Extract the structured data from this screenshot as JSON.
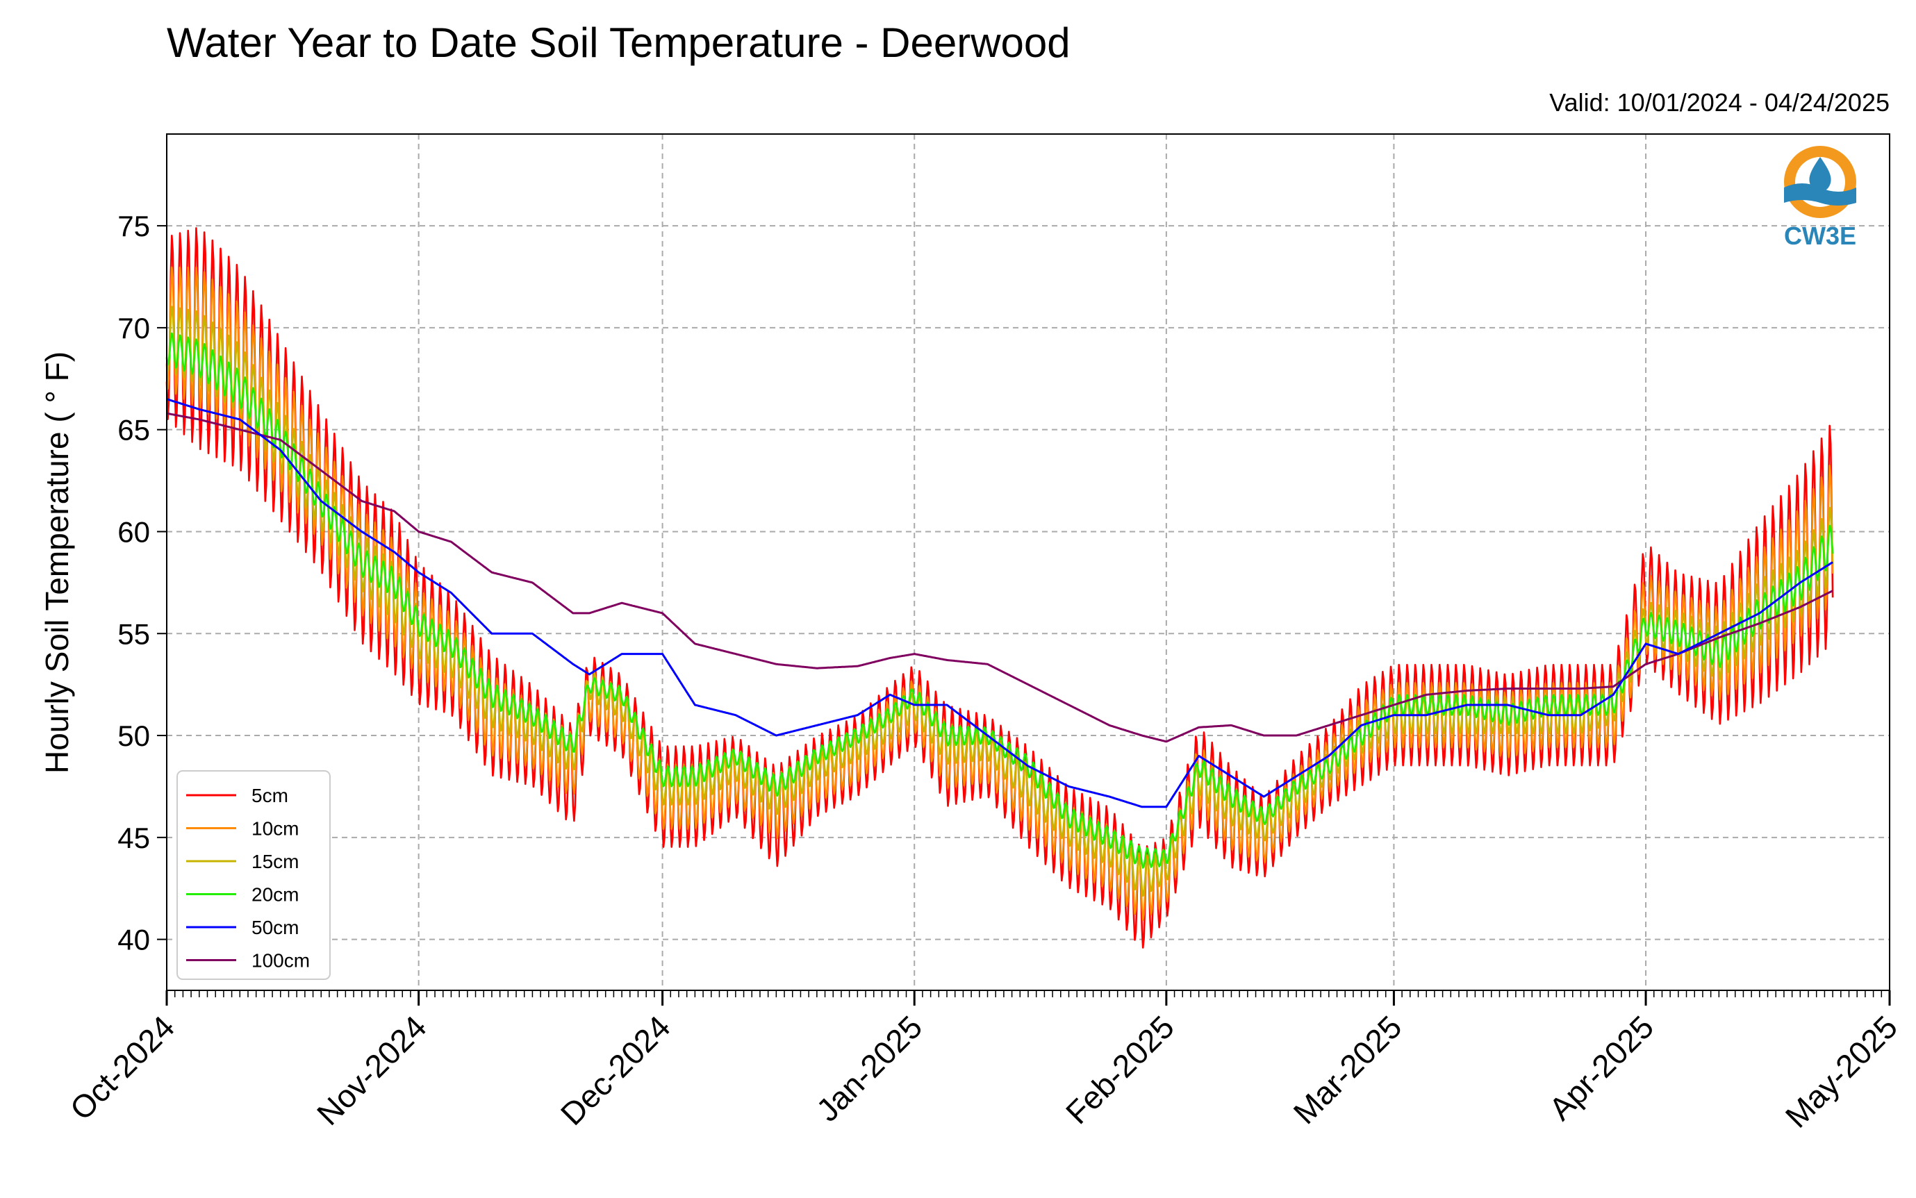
{
  "chart_data": {
    "type": "line",
    "title": "Water Year to Date Soil Temperature - Deerwood",
    "subtitle": "Valid: 10/01/2024 - 04/24/2025",
    "ylabel": "Hourly Soil Temperature ( ° F)",
    "xlabel": "",
    "ylim": [
      37.5,
      79.5
    ],
    "yticks": [
      40,
      45,
      50,
      55,
      60,
      65,
      70,
      75
    ],
    "xlim": [
      "2024-10-01",
      "2025-05-01"
    ],
    "xticks": [
      {
        "date": "2024-10-01",
        "label": "Oct-2024"
      },
      {
        "date": "2024-11-01",
        "label": "Nov-2024"
      },
      {
        "date": "2024-12-01",
        "label": "Dec-2024"
      },
      {
        "date": "2025-01-01",
        "label": "Jan-2025"
      },
      {
        "date": "2025-02-01",
        "label": "Feb-2025"
      },
      {
        "date": "2025-03-01",
        "label": "Mar-2025"
      },
      {
        "date": "2025-04-01",
        "label": "Apr-2025"
      },
      {
        "date": "2025-05-01",
        "label": "May-2025"
      }
    ],
    "grid": true,
    "legend_position": "bottom-left",
    "logo_text": "CW3E",
    "x": [
      "2024-10-01",
      "2024-10-05",
      "2024-10-10",
      "2024-10-15",
      "2024-10-20",
      "2024-10-25",
      "2024-10-29",
      "2024-11-01",
      "2024-11-05",
      "2024-11-10",
      "2024-11-15",
      "2024-11-20",
      "2024-11-22",
      "2024-11-26",
      "2024-12-01",
      "2024-12-05",
      "2024-12-10",
      "2024-12-15",
      "2024-12-20",
      "2024-12-25",
      "2024-12-29",
      "2025-01-01",
      "2025-01-05",
      "2025-01-10",
      "2025-01-15",
      "2025-01-20",
      "2025-01-25",
      "2025-01-29",
      "2025-02-01",
      "2025-02-05",
      "2025-02-09",
      "2025-02-13",
      "2025-02-17",
      "2025-02-21",
      "2025-02-25",
      "2025-03-01",
      "2025-03-05",
      "2025-03-10",
      "2025-03-15",
      "2025-03-20",
      "2025-03-24",
      "2025-03-28",
      "2025-04-01",
      "2025-04-05",
      "2025-04-10",
      "2025-04-15",
      "2025-04-20",
      "2025-04-24"
    ],
    "series": [
      {
        "name": "5cm",
        "color": "#ff0000",
        "values": [
          70.0,
          69.5,
          68.0,
          65.0,
          62.0,
          58.5,
          57.0,
          55.0,
          54.0,
          51.0,
          50.0,
          48.0,
          52.0,
          51.0,
          47.0,
          47.0,
          48.0,
          46.0,
          48.0,
          49.0,
          50.5,
          51.5,
          49.0,
          49.0,
          47.0,
          45.0,
          44.0,
          42.0,
          43.0,
          48.0,
          46.0,
          45.0,
          47.0,
          48.5,
          50.0,
          51.0,
          51.0,
          51.0,
          50.5,
          51.0,
          51.0,
          51.0,
          56.5,
          55.0,
          54.0,
          56.0,
          58.0,
          60.0
        ],
        "amp": [
          4.5,
          5.5,
          5.0,
          4.5,
          4.0,
          4.0,
          4.0,
          3.5,
          3.0,
          3.0,
          2.5,
          2.5,
          2.0,
          2.0,
          2.5,
          2.5,
          2.0,
          2.5,
          2.0,
          2.0,
          2.0,
          2.0,
          2.5,
          2.0,
          2.5,
          2.5,
          2.5,
          2.5,
          2.0,
          2.5,
          2.5,
          2.0,
          2.0,
          2.0,
          2.5,
          2.5,
          2.5,
          2.5,
          2.5,
          2.5,
          2.5,
          2.5,
          3.0,
          3.0,
          3.5,
          4.5,
          5.0,
          5.5
        ]
      },
      {
        "name": "10cm",
        "color": "#ff8c00",
        "values": [
          70.0,
          69.5,
          68.0,
          65.0,
          62.0,
          58.5,
          57.0,
          55.0,
          54.0,
          51.0,
          50.0,
          48.5,
          52.0,
          51.0,
          47.0,
          47.0,
          48.0,
          46.5,
          48.0,
          49.0,
          50.5,
          51.5,
          49.0,
          49.0,
          47.0,
          45.0,
          44.0,
          42.5,
          43.0,
          48.0,
          46.0,
          45.0,
          47.0,
          48.5,
          50.0,
          51.0,
          51.0,
          51.0,
          50.5,
          51.0,
          51.0,
          51.0,
          56.0,
          55.0,
          54.0,
          56.0,
          58.0,
          60.0
        ],
        "amp": [
          3.0,
          3.5,
          3.2,
          3.0,
          2.6,
          2.6,
          2.6,
          2.2,
          2.0,
          2.0,
          1.6,
          1.6,
          1.3,
          1.3,
          1.6,
          1.6,
          1.3,
          1.6,
          1.3,
          1.3,
          1.3,
          1.3,
          1.6,
          1.3,
          1.6,
          1.6,
          1.6,
          1.6,
          1.3,
          1.6,
          1.6,
          1.3,
          1.3,
          1.3,
          1.6,
          1.6,
          1.6,
          1.6,
          1.6,
          1.6,
          1.6,
          1.6,
          2.0,
          2.0,
          2.3,
          3.0,
          3.2,
          3.5
        ]
      },
      {
        "name": "15cm",
        "color": "#c8b400",
        "values": [
          69.5,
          69.0,
          67.5,
          64.5,
          61.5,
          58.5,
          57.0,
          55.0,
          54.0,
          51.5,
          50.5,
          49.0,
          52.5,
          51.5,
          47.5,
          47.5,
          48.5,
          47.0,
          48.5,
          49.5,
          50.5,
          51.5,
          49.5,
          49.5,
          47.5,
          45.5,
          44.5,
          43.0,
          43.5,
          48.0,
          46.5,
          45.5,
          47.0,
          48.5,
          50.0,
          51.0,
          51.0,
          51.0,
          51.0,
          51.0,
          51.0,
          51.5,
          55.5,
          55.0,
          54.0,
          56.0,
          57.5,
          59.5
        ],
        "amp": [
          1.6,
          1.8,
          1.7,
          1.6,
          1.4,
          1.4,
          1.4,
          1.2,
          1.1,
          1.1,
          0.9,
          0.9,
          0.7,
          0.7,
          0.9,
          0.9,
          0.7,
          0.9,
          0.7,
          0.7,
          0.7,
          0.7,
          0.9,
          0.7,
          0.9,
          0.9,
          0.9,
          0.9,
          0.7,
          0.9,
          0.9,
          0.7,
          0.7,
          0.7,
          0.9,
          0.9,
          0.9,
          0.9,
          0.9,
          0.9,
          0.9,
          0.9,
          1.1,
          1.1,
          1.3,
          1.6,
          1.7,
          1.9
        ]
      },
      {
        "name": "20cm",
        "color": "#22ee00",
        "values": [
          69.0,
          68.5,
          67.0,
          64.5,
          61.5,
          58.5,
          57.5,
          55.5,
          54.5,
          52.0,
          51.0,
          49.5,
          52.5,
          52.0,
          48.0,
          48.0,
          49.0,
          47.5,
          49.0,
          50.0,
          51.0,
          52.0,
          50.0,
          50.0,
          48.5,
          46.0,
          45.0,
          44.0,
          44.0,
          48.5,
          47.0,
          46.0,
          47.5,
          48.5,
          50.0,
          51.5,
          51.5,
          51.5,
          51.0,
          51.5,
          51.5,
          51.5,
          55.5,
          55.0,
          54.0,
          56.0,
          57.5,
          59.5
        ],
        "amp": [
          0.8,
          0.9,
          0.9,
          0.8,
          0.7,
          0.7,
          0.7,
          0.6,
          0.6,
          0.6,
          0.5,
          0.5,
          0.4,
          0.4,
          0.5,
          0.5,
          0.4,
          0.5,
          0.4,
          0.4,
          0.4,
          0.4,
          0.5,
          0.4,
          0.5,
          0.5,
          0.5,
          0.5,
          0.4,
          0.5,
          0.5,
          0.4,
          0.4,
          0.4,
          0.5,
          0.5,
          0.5,
          0.5,
          0.5,
          0.5,
          0.5,
          0.5,
          0.6,
          0.6,
          0.7,
          0.8,
          0.9,
          1.0
        ]
      },
      {
        "name": "50cm",
        "color": "#0000ff",
        "values": [
          66.5,
          66.0,
          65.5,
          64.0,
          61.5,
          60.0,
          59.0,
          58.0,
          57.0,
          55.0,
          55.0,
          53.5,
          53.0,
          54.0,
          54.0,
          51.5,
          51.0,
          50.0,
          50.5,
          51.0,
          52.0,
          51.5,
          51.5,
          50.0,
          48.5,
          47.5,
          47.0,
          46.5,
          46.5,
          49.0,
          48.0,
          47.0,
          48.0,
          49.0,
          50.5,
          51.0,
          51.0,
          51.5,
          51.5,
          51.0,
          51.0,
          52.0,
          54.5,
          54.0,
          55.0,
          56.0,
          57.5,
          58.5
        ],
        "amp": [
          0,
          0,
          0,
          0,
          0,
          0,
          0,
          0,
          0,
          0,
          0,
          0,
          0,
          0,
          0,
          0,
          0,
          0,
          0,
          0,
          0,
          0,
          0,
          0,
          0,
          0,
          0,
          0,
          0,
          0,
          0,
          0,
          0,
          0,
          0,
          0,
          0,
          0,
          0,
          0,
          0,
          0,
          0,
          0,
          0,
          0,
          0,
          0
        ]
      },
      {
        "name": "100cm",
        "color": "#800060",
        "values": [
          65.8,
          65.5,
          65.0,
          64.5,
          63.0,
          61.5,
          61.0,
          60.0,
          59.5,
          58.0,
          57.5,
          56.0,
          56.0,
          56.5,
          56.0,
          54.5,
          54.0,
          53.5,
          53.3,
          53.4,
          53.8,
          54.0,
          53.7,
          53.5,
          52.5,
          51.5,
          50.5,
          50.0,
          49.7,
          50.4,
          50.5,
          50.0,
          50.0,
          50.5,
          51.0,
          51.5,
          52.0,
          52.2,
          52.3,
          52.3,
          52.3,
          52.4,
          53.5,
          54.0,
          54.8,
          55.5,
          56.3,
          57.1
        ],
        "amp": [
          0,
          0,
          0,
          0,
          0,
          0,
          0,
          0,
          0,
          0,
          0,
          0,
          0,
          0,
          0,
          0,
          0,
          0,
          0,
          0,
          0,
          0,
          0,
          0,
          0,
          0,
          0,
          0,
          0,
          0,
          0,
          0,
          0,
          0,
          0,
          0,
          0,
          0,
          0,
          0,
          0,
          0,
          0,
          0,
          0,
          0,
          0,
          0
        ]
      }
    ]
  }
}
